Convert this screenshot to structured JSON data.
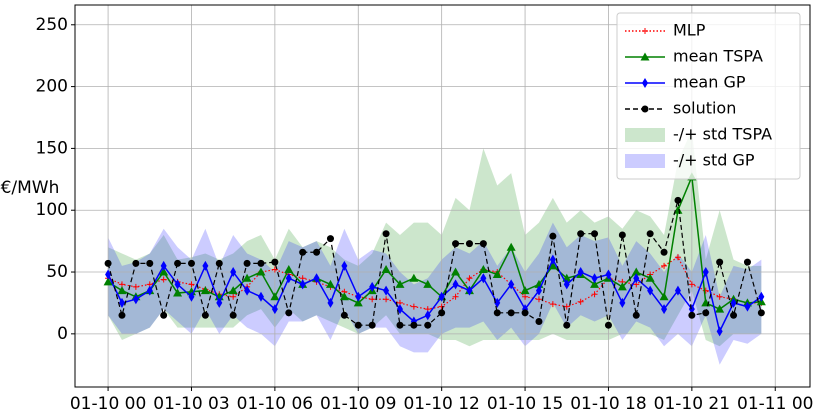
{
  "chart_data": {
    "type": "line",
    "ylabel": "€/MWh",
    "ylim": [
      -43,
      266
    ],
    "yticks": [
      0,
      50,
      100,
      150,
      200,
      250
    ],
    "xlim": [
      -1.19,
      25.25
    ],
    "xticks": [
      {
        "value": 0,
        "label": "01-10 00"
      },
      {
        "value": 3,
        "label": "01-10 03"
      },
      {
        "value": 6,
        "label": "01-10 06"
      },
      {
        "value": 9,
        "label": "01-10 09"
      },
      {
        "value": 12,
        "label": "01-10 12"
      },
      {
        "value": 15,
        "label": "01-10 15"
      },
      {
        "value": 18,
        "label": "01-10 18"
      },
      {
        "value": 21,
        "label": "01-10 21"
      },
      {
        "value": 24,
        "label": "01-11 00"
      }
    ],
    "grid": true,
    "legend": "upper right",
    "x": [
      0,
      0.5,
      1,
      1.5,
      2,
      2.5,
      3,
      3.5,
      4,
      4.5,
      5,
      5.5,
      6,
      6.5,
      7,
      7.5,
      8,
      8.5,
      9,
      9.5,
      10,
      10.5,
      11,
      11.5,
      12,
      12.5,
      13,
      13.5,
      14,
      14.5,
      15,
      15.5,
      16,
      16.5,
      17,
      17.5,
      18,
      18.5,
      19,
      19.5,
      20,
      20.5,
      21,
      21.5,
      22,
      22.5,
      23,
      23.5
    ],
    "series": [
      {
        "name": "MLP",
        "color": "#ff0000",
        "marker": "plus",
        "linestyle": "dotted",
        "values": [
          45,
          40,
          38,
          40,
          44,
          42,
          40,
          36,
          32,
          30,
          38,
          50,
          52,
          48,
          45,
          42,
          38,
          34,
          30,
          28,
          28,
          25,
          22,
          20,
          22,
          30,
          45,
          52,
          50,
          40,
          30,
          28,
          24,
          22,
          26,
          32,
          45,
          42,
          40,
          48,
          55,
          62,
          40,
          35,
          30,
          28,
          25,
          25
        ]
      },
      {
        "name": "mean TSPA",
        "color": "#008000",
        "marker": "triangle",
        "linestyle": "solid",
        "values": [
          42,
          35,
          30,
          35,
          50,
          33,
          34,
          35,
          30,
          35,
          45,
          50,
          30,
          52,
          40,
          45,
          40,
          30,
          25,
          35,
          52,
          40,
          45,
          40,
          30,
          50,
          35,
          52,
          48,
          70,
          35,
          40,
          55,
          45,
          48,
          40,
          45,
          38,
          50,
          45,
          30,
          100,
          127,
          25,
          20,
          28,
          25,
          26
        ]
      },
      {
        "name": "mean GP",
        "color": "#0000ff",
        "marker": "diamond",
        "linestyle": "solid",
        "values": [
          48,
          25,
          28,
          35,
          55,
          40,
          30,
          55,
          25,
          50,
          35,
          30,
          20,
          45,
          40,
          45,
          25,
          55,
          30,
          38,
          35,
          20,
          10,
          15,
          30,
          40,
          35,
          45,
          25,
          40,
          20,
          35,
          60,
          40,
          50,
          45,
          48,
          25,
          45,
          35,
          20,
          35,
          20,
          50,
          2,
          25,
          22,
          30
        ]
      },
      {
        "name": "solution",
        "color": "#000000",
        "marker": "circle",
        "linestyle": "dashed",
        "values": [
          57,
          15,
          57,
          57,
          15,
          57,
          57,
          15,
          57,
          15,
          57,
          57,
          58,
          17,
          66,
          66,
          77,
          15,
          7,
          7,
          81,
          7,
          7,
          7,
          17,
          73,
          73,
          73,
          17,
          17,
          17,
          10,
          79,
          7,
          81,
          81,
          7,
          80,
          15,
          81,
          66,
          108,
          15,
          17,
          58,
          15,
          58,
          17
        ]
      }
    ],
    "bands": [
      {
        "name": "-/+ std TSPA",
        "color": "#008000",
        "lower": [
          15,
          -5,
          0,
          5,
          20,
          5,
          5,
          5,
          5,
          5,
          15,
          20,
          5,
          20,
          10,
          15,
          10,
          5,
          0,
          5,
          15,
          0,
          0,
          0,
          -5,
          -5,
          -10,
          -5,
          -5,
          -5,
          -5,
          -5,
          0,
          -5,
          -5,
          -5,
          -5,
          0,
          0,
          0,
          -5,
          15,
          35,
          -5,
          -10,
          0,
          0,
          0
        ],
        "upper": [
          70,
          65,
          60,
          65,
          80,
          60,
          62,
          65,
          60,
          65,
          75,
          80,
          60,
          85,
          70,
          75,
          70,
          60,
          55,
          65,
          90,
          80,
          90,
          90,
          80,
          110,
          100,
          150,
          120,
          130,
          80,
          90,
          110,
          90,
          100,
          90,
          95,
          85,
          100,
          95,
          80,
          140,
          165,
          60,
          100,
          60,
          55,
          55
        ]
      },
      {
        "name": "-/+ std GP",
        "color": "#0000ff",
        "lower": [
          15,
          0,
          0,
          5,
          20,
          10,
          0,
          20,
          0,
          15,
          5,
          0,
          -10,
          10,
          10,
          15,
          -5,
          20,
          0,
          5,
          5,
          -10,
          -15,
          -15,
          0,
          5,
          5,
          10,
          -5,
          5,
          -10,
          0,
          25,
          5,
          15,
          10,
          15,
          -5,
          10,
          5,
          -10,
          0,
          -10,
          15,
          -25,
          -5,
          -8,
          0
        ],
        "upper": [
          78,
          55,
          58,
          65,
          85,
          70,
          60,
          85,
          55,
          80,
          65,
          60,
          50,
          75,
          70,
          75,
          55,
          85,
          60,
          68,
          65,
          50,
          40,
          45,
          60,
          70,
          65,
          75,
          55,
          70,
          50,
          65,
          90,
          70,
          80,
          75,
          78,
          55,
          75,
          65,
          50,
          65,
          50,
          80,
          30,
          55,
          52,
          60
        ]
      }
    ]
  }
}
